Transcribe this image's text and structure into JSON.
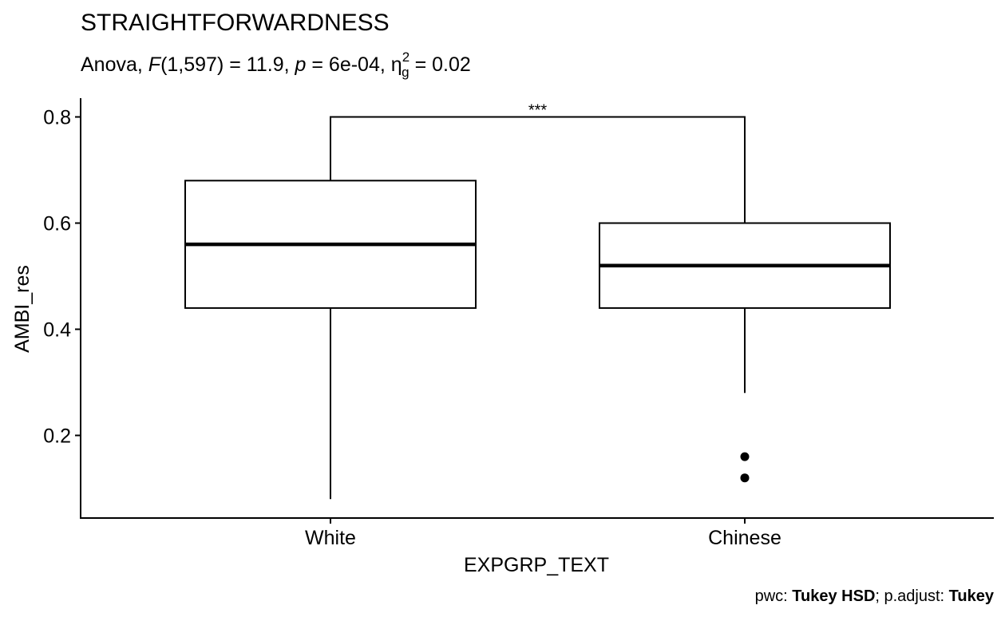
{
  "chart_data": {
    "type": "boxplot",
    "title": "STRAIGHTFORWARDNESS",
    "subtitle": {
      "test": "Anova",
      "stat_symbol": "F",
      "df": "(1,597)",
      "stat_value": "= 11.9",
      "p_symbol": "p",
      "p_value": "= 6e-04",
      "effect_symbol": "η",
      "effect_sub": "g",
      "effect_sup": "2",
      "effect_value": "= 0.02"
    },
    "xlabel": "EXPGRP_TEXT",
    "ylabel": "AMBI_res",
    "ylim": [
      0.045,
      0.835
    ],
    "yticks": [
      0.2,
      0.4,
      0.6,
      0.8
    ],
    "ytick_labels": [
      "0.2",
      "0.4",
      "0.6",
      "0.8"
    ],
    "categories": [
      "White",
      "Chinese"
    ],
    "boxes": [
      {
        "category": "White",
        "whisker_low": 0.08,
        "q1": 0.44,
        "median": 0.56,
        "q3": 0.68,
        "whisker_high": 0.8,
        "outliers": []
      },
      {
        "category": "Chinese",
        "whisker_low": 0.28,
        "q1": 0.44,
        "median": 0.52,
        "q3": 0.6,
        "whisker_high": 0.8,
        "outliers": [
          0.16,
          0.12
        ]
      }
    ],
    "comparison": {
      "groups": [
        "White",
        "Chinese"
      ],
      "y": 0.8,
      "label": "***"
    },
    "grid": false,
    "legend": "none",
    "caption": {
      "prefix": "pwc: ",
      "method": "Tukey HSD",
      "mid": "; p.adjust: ",
      "adjust": "Tukey"
    },
    "colors": {
      "box_fill": "#ffffff",
      "line": "#000000",
      "background": "#ffffff"
    }
  }
}
